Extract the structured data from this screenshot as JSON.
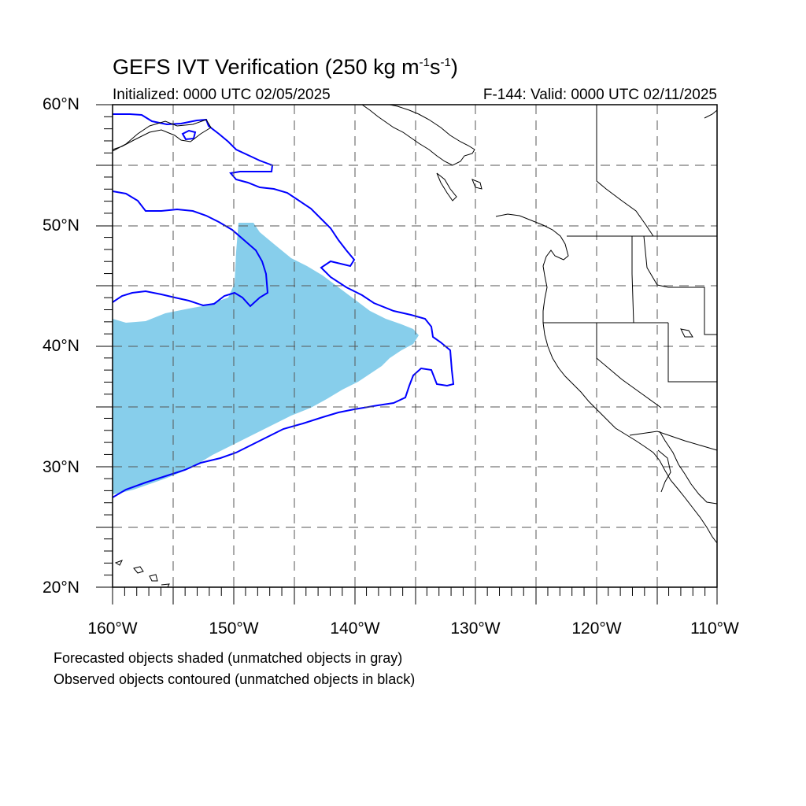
{
  "title": {
    "main": "GEFS IVT Verification (250 kg m",
    "exp1": "-1",
    "mid": "s",
    "exp2": "-1",
    "end": ")"
  },
  "initialized": "Initialized: 0000 UTC 02/05/2025",
  "valid": "F-144: Valid: 0000 UTC 02/11/2025",
  "lat_labels": [
    "60°N",
    "50°N",
    "40°N",
    "30°N",
    "20°N"
  ],
  "lon_labels": [
    "160°W",
    "150°W",
    "140°W",
    "130°W",
    "120°W",
    "110°W"
  ],
  "notes": [
    "Forecasted objects shaded (unmatched objects in gray)",
    "Observed objects contoured (unmatched objects in black)"
  ],
  "colors": {
    "forecast_fill": "#87ceeb",
    "observed_contour": "#0000ff",
    "coast": "#000000",
    "grid": "#555555"
  }
}
